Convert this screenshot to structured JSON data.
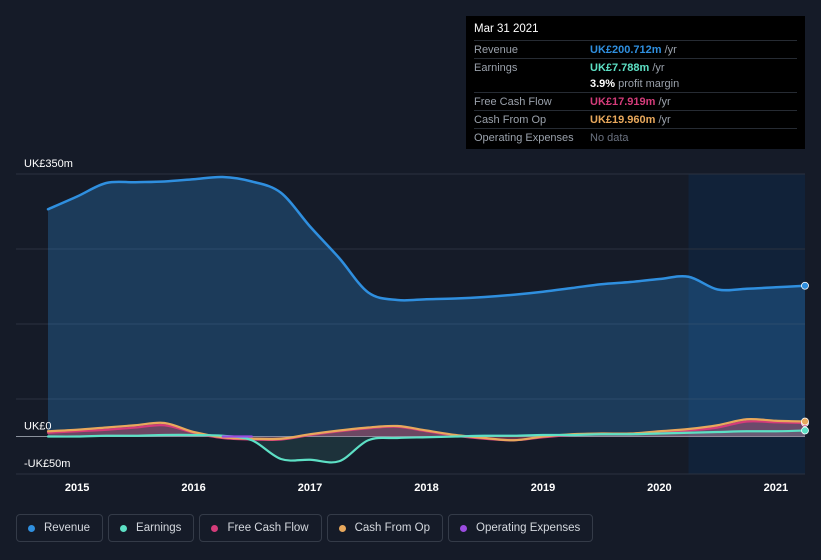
{
  "colors": {
    "revenue": "#2f8fdf",
    "earnings": "#5de0c5",
    "fcf": "#d43c7a",
    "cfo": "#e8a85c",
    "opex": "#9b4ce0"
  },
  "tooltip": {
    "date": "Mar 31 2021",
    "rows": [
      {
        "label": "Revenue",
        "value": "UK£200.712m",
        "unit": "/yr"
      },
      {
        "label": "Earnings",
        "value": "UK£7.788m",
        "unit": "/yr"
      },
      {
        "label": "Free Cash Flow",
        "value": "UK£17.919m",
        "unit": "/yr"
      },
      {
        "label": "Cash From Op",
        "value": "UK£19.960m",
        "unit": "/yr"
      },
      {
        "label": "Operating Expenses",
        "value": "No data",
        "unit": ""
      }
    ],
    "margin_pct": "3.9%",
    "margin_text": "profit margin"
  },
  "legend": [
    {
      "label": "Revenue",
      "key": "revenue"
    },
    {
      "label": "Earnings",
      "key": "earnings"
    },
    {
      "label": "Free Cash Flow",
      "key": "fcf"
    },
    {
      "label": "Cash From Op",
      "key": "cfo"
    },
    {
      "label": "Operating Expenses",
      "key": "opex"
    }
  ],
  "chart_data": {
    "type": "area",
    "ylim": [
      -50,
      350
    ],
    "xlim": [
      2014.75,
      2021.25
    ],
    "y_tick_labels": [
      {
        "value": 350,
        "label": "UK£350m"
      },
      {
        "value": 0,
        "label": "UK£0"
      },
      {
        "value": -50,
        "label": "-UK£50m"
      }
    ],
    "x_ticks": [
      2015,
      2016,
      2017,
      2018,
      2019,
      2020,
      2021
    ],
    "x_tick_labels": [
      "2015",
      "2016",
      "2017",
      "2018",
      "2019",
      "2020",
      "2021"
    ],
    "grid": true,
    "highlight_from": 2020.25,
    "series": [
      {
        "name": "Revenue",
        "key": "revenue",
        "x": [
          2014.75,
          2015.0,
          2015.25,
          2015.5,
          2015.75,
          2016.0,
          2016.25,
          2016.5,
          2016.75,
          2017.0,
          2017.25,
          2017.5,
          2017.75,
          2018.0,
          2018.25,
          2018.5,
          2018.75,
          2019.0,
          2019.25,
          2019.5,
          2019.75,
          2020.0,
          2020.25,
          2020.5,
          2020.75,
          2021.0,
          2021.25
        ],
        "y": [
          303,
          320,
          338,
          339,
          340,
          343,
          346,
          340,
          325,
          280,
          238,
          192,
          182,
          183,
          184,
          186,
          189,
          193,
          198,
          203,
          206,
          210,
          213,
          196,
          197,
          199,
          201
        ]
      },
      {
        "name": "Earnings",
        "key": "earnings",
        "x": [
          2014.75,
          2015.0,
          2015.25,
          2015.5,
          2015.75,
          2016.0,
          2016.25,
          2016.5,
          2016.75,
          2017.0,
          2017.25,
          2017.5,
          2017.75,
          2018.0,
          2018.25,
          2018.5,
          2018.75,
          2019.0,
          2019.25,
          2019.5,
          2019.75,
          2020.0,
          2020.25,
          2020.5,
          2020.75,
          2021.0,
          2021.25
        ],
        "y": [
          0,
          0,
          1,
          1,
          2,
          2,
          1,
          -5,
          -30,
          -31,
          -33,
          -5,
          -2,
          -1,
          0,
          1,
          1,
          2,
          2,
          3,
          3,
          4,
          5,
          6,
          7,
          7,
          8
        ]
      },
      {
        "name": "Free Cash Flow",
        "key": "fcf",
        "x": [
          2014.75,
          2015.0,
          2015.25,
          2015.5,
          2015.75,
          2016.0,
          2016.25,
          2016.5,
          2016.75,
          2017.0,
          2017.25,
          2017.5,
          2017.75,
          2018.0,
          2018.25,
          2018.5,
          2018.75,
          2019.0,
          2019.25,
          2019.5,
          2019.75,
          2020.0,
          2020.25,
          2020.5,
          2020.75,
          2021.0,
          2021.25
        ],
        "y": [
          5,
          7,
          9,
          12,
          15,
          5,
          -2,
          -4,
          -4,
          2,
          7,
          11,
          13,
          7,
          1,
          -3,
          -5,
          -1,
          2,
          3,
          3,
          5,
          8,
          12,
          20,
          19,
          18
        ]
      },
      {
        "name": "Cash From Op",
        "key": "cfo",
        "x": [
          2014.75,
          2015.0,
          2015.25,
          2015.5,
          2015.75,
          2016.0,
          2016.25,
          2016.5,
          2016.75,
          2017.0,
          2017.25,
          2017.5,
          2017.75,
          2018.0,
          2018.25,
          2018.5,
          2018.75,
          2019.0,
          2019.25,
          2019.5,
          2019.75,
          2020.0,
          2020.25,
          2020.5,
          2020.75,
          2021.0,
          2021.25
        ],
        "y": [
          7,
          9,
          12,
          15,
          18,
          6,
          -1,
          -3,
          -3,
          3,
          8,
          12,
          14,
          8,
          2,
          -2,
          -5,
          0,
          3,
          4,
          4,
          7,
          10,
          15,
          23,
          21,
          20
        ]
      },
      {
        "name": "Operating Expenses",
        "key": "opex",
        "x": [
          2016.25,
          2016.5
        ],
        "y": [
          0,
          0
        ]
      }
    ]
  }
}
